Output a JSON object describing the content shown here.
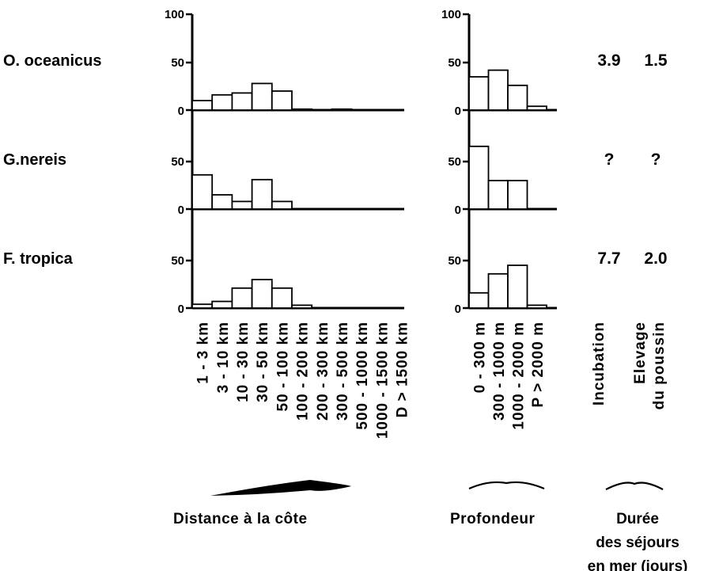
{
  "chart_data": {
    "type": "bar",
    "y_ticks": [
      "100",
      "50",
      "0"
    ],
    "ylim": [
      0,
      100
    ],
    "distance": {
      "caption": "Distance à la côte",
      "categories": [
        "1 - 3 km",
        "3 - 10 km",
        "10 - 30 km",
        "30 - 50 km",
        "50 - 100 km",
        "100 - 200 km",
        "200 - 300 km",
        "300 - 500 km",
        "500 - 1000 km",
        "1000 - 1500 km",
        "D > 1500 km"
      ]
    },
    "depth": {
      "caption": "Profondeur",
      "categories": [
        "0 - 300 m",
        "300 - 1000 m",
        "1000 - 2000 m",
        "P > 2000 m"
      ]
    },
    "duration": {
      "caption_lines": [
        "Durée",
        "des séjours",
        "en mer (jours)"
      ],
      "columns": [
        {
          "lines": [
            "Incubation"
          ]
        },
        {
          "lines": [
            "Elevage",
            "du poussin"
          ]
        }
      ]
    },
    "series": [
      {
        "name": "O. oceanicus",
        "distance": [
          10,
          16,
          18,
          28,
          20,
          1,
          0,
          1,
          0,
          0,
          0
        ],
        "depth": [
          35,
          42,
          26,
          4
        ],
        "incubation": "3.9",
        "elevage": "1.5"
      },
      {
        "name": "G.nereis",
        "distance": [
          36,
          15,
          8,
          31,
          8,
          0,
          0,
          0,
          0,
          0,
          0
        ],
        "depth": [
          66,
          30,
          30,
          0
        ],
        "incubation": "?",
        "elevage": "?"
      },
      {
        "name": "F. tropica",
        "distance": [
          4,
          7,
          21,
          30,
          21,
          3,
          0,
          0,
          0,
          0,
          0
        ],
        "depth": [
          16,
          36,
          45,
          3
        ],
        "incubation": "7.7",
        "elevage": "2.0"
      }
    ]
  }
}
